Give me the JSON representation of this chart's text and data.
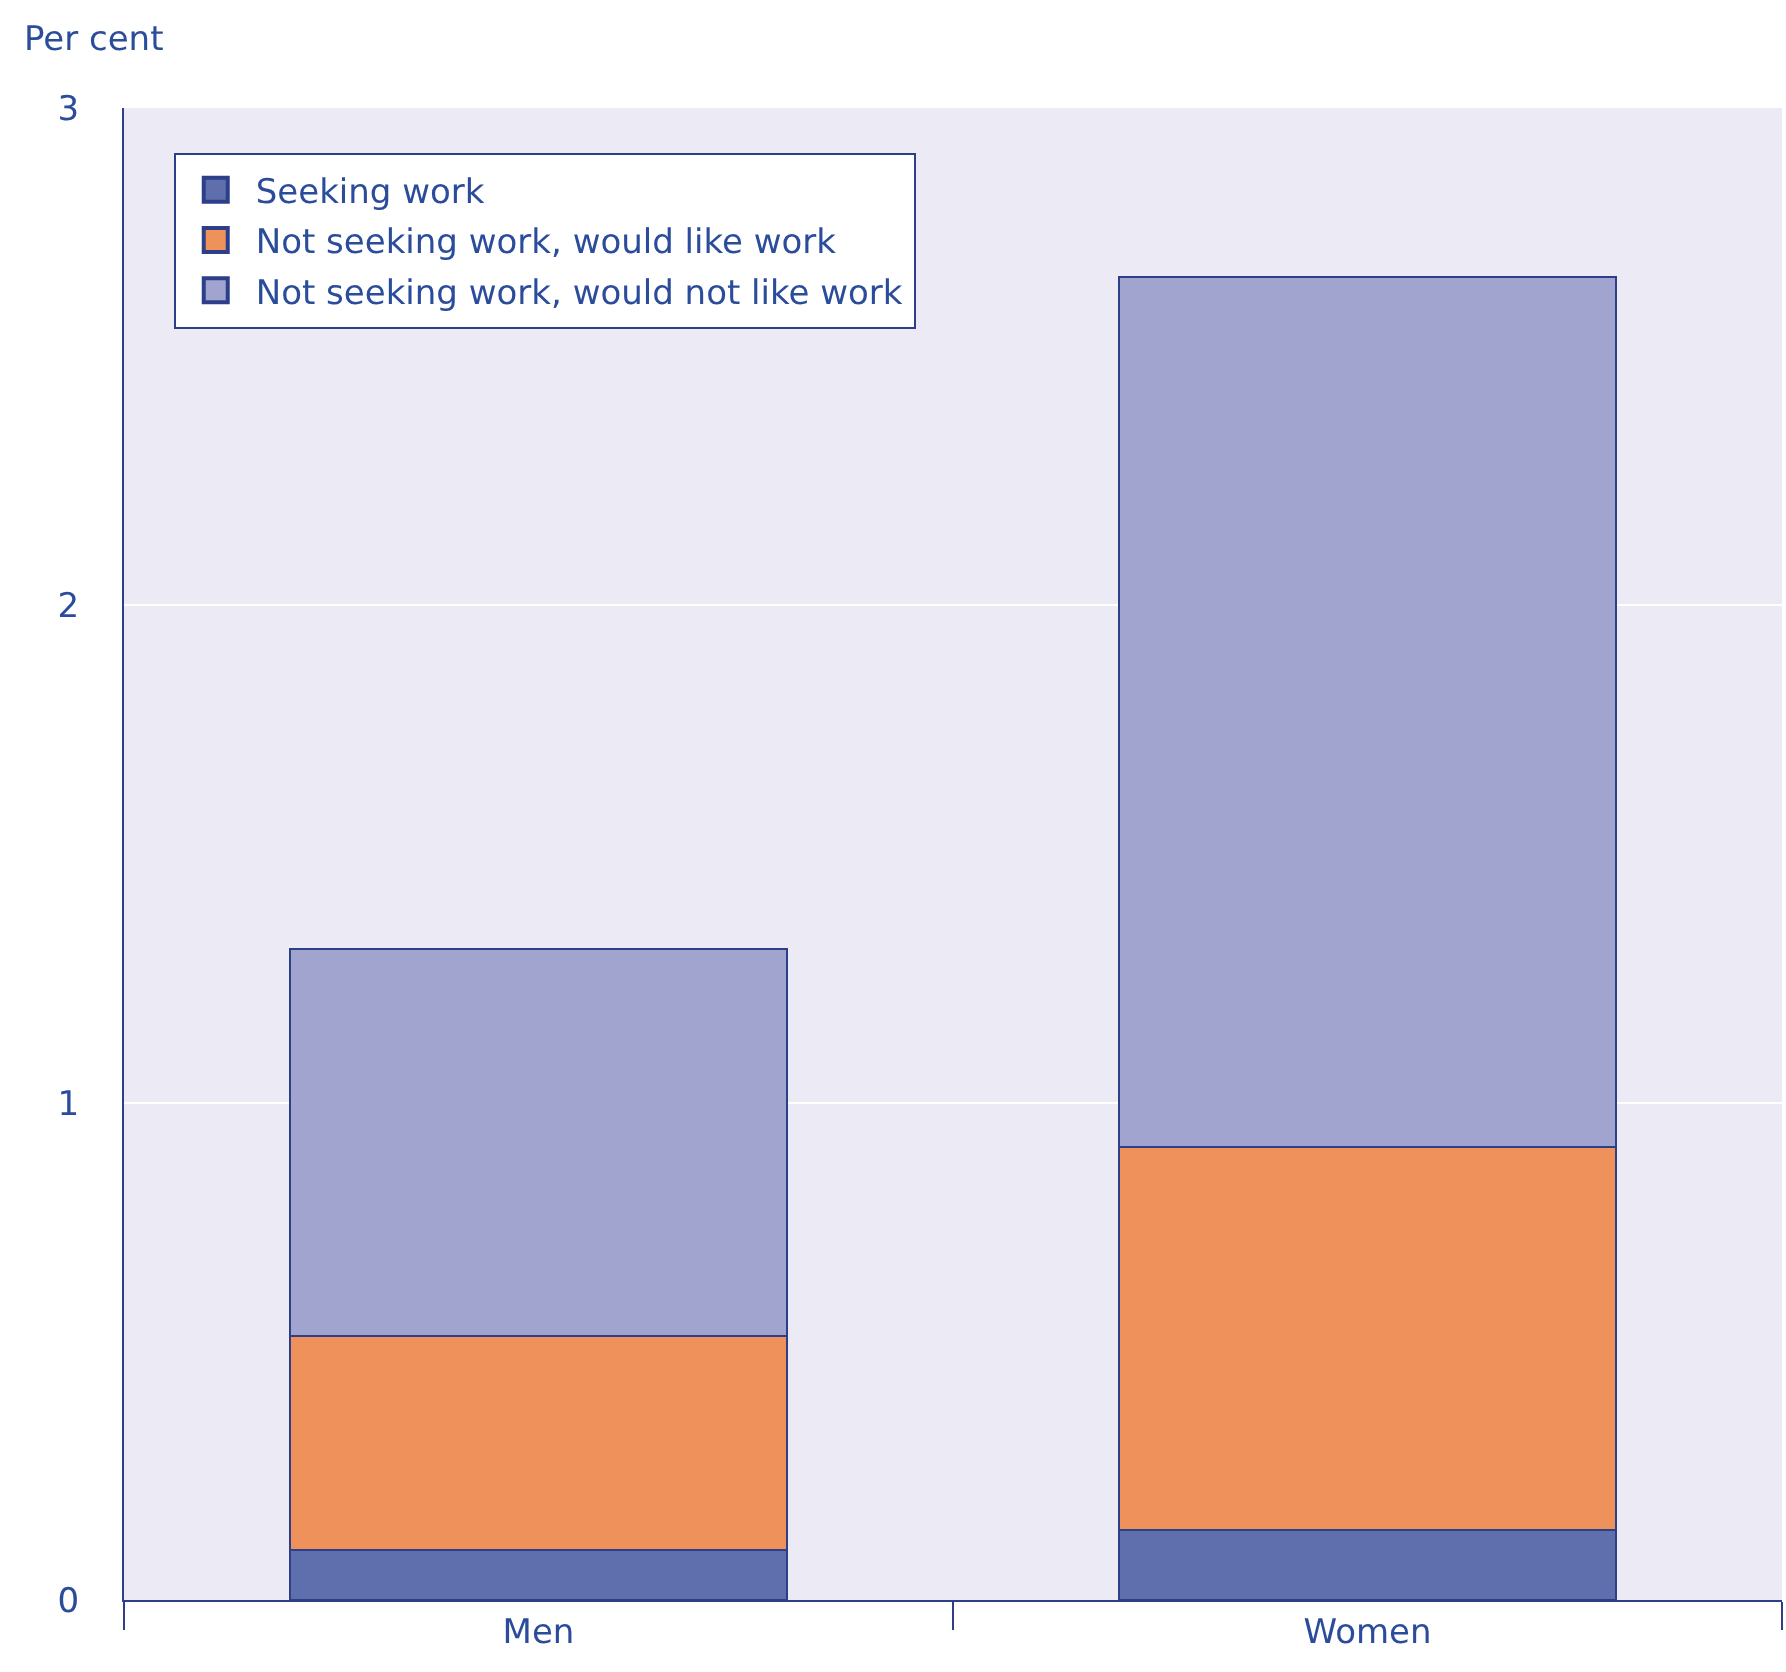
{
  "chart_data": {
    "type": "bar",
    "stacked": true,
    "ylabel": "Per cent",
    "categories": [
      "Men",
      "Women"
    ],
    "series": [
      {
        "name": "Seeking work",
        "color": "#5f6fad",
        "values": [
          0.1,
          0.14
        ]
      },
      {
        "name": "Not seeking work, would like work",
        "color": "#ee915a",
        "values": [
          0.43,
          0.77
        ]
      },
      {
        "name": "Not seeking work, would not like work",
        "color": "#a2a4d0",
        "values": [
          0.78,
          1.75
        ]
      }
    ],
    "ylim": [
      0,
      3
    ],
    "yticks": [
      0,
      1,
      2,
      3
    ],
    "grid": "y",
    "legend": "top left"
  }
}
